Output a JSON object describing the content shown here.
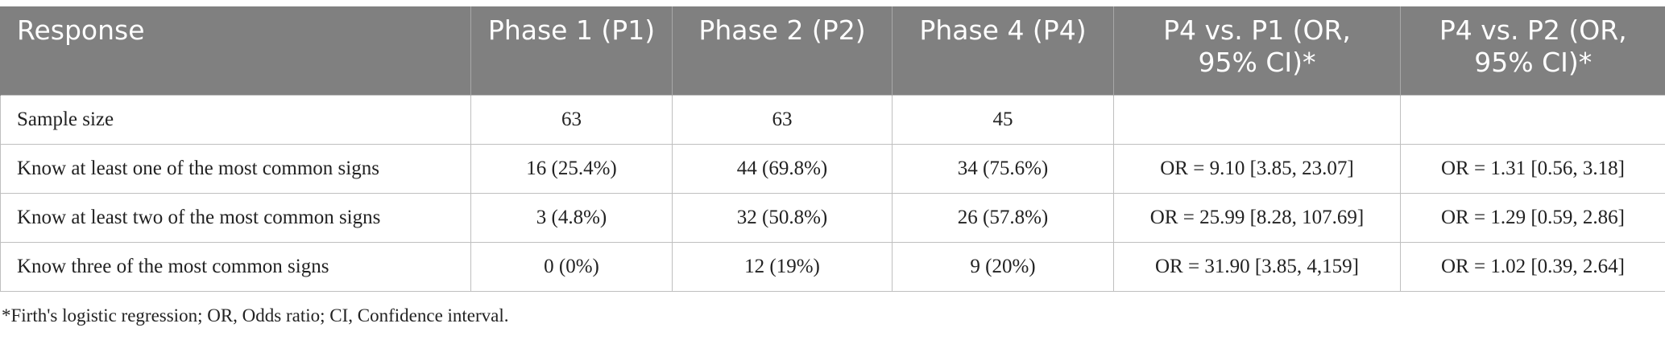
{
  "table": {
    "headers": [
      "Response",
      "Phase 1 (P1)",
      "Phase 2 (P2)",
      "Phase 4 (P4)",
      "P4 vs. P1 (OR, 95% CI)*",
      "P4 vs. P2 (OR, 95% CI)*"
    ],
    "rows": [
      [
        "Sample size",
        "63",
        "63",
        "45",
        "",
        ""
      ],
      [
        "Know at least one of the most common signs",
        "16 (25.4%)",
        "44 (69.8%)",
        "34 (75.6%)",
        "OR = 9.10 [3.85, 23.07]",
        "OR = 1.31 [0.56, 3.18]"
      ],
      [
        "Know at least two of the most common signs",
        "3 (4.8%)",
        "32 (50.8%)",
        "26 (57.8%)",
        "OR = 25.99 [8.28, 107.69]",
        "OR = 1.29 [0.59, 2.86]"
      ],
      [
        "Know three of the most common signs",
        "0 (0%)",
        "12 (19%)",
        "9 (20%)",
        "OR = 31.90 [3.85, 4,159]",
        "OR = 1.02 [0.39, 2.64]"
      ]
    ]
  },
  "footnote": "*Firth's logistic regression; OR, Odds ratio; CI, Confidence interval."
}
